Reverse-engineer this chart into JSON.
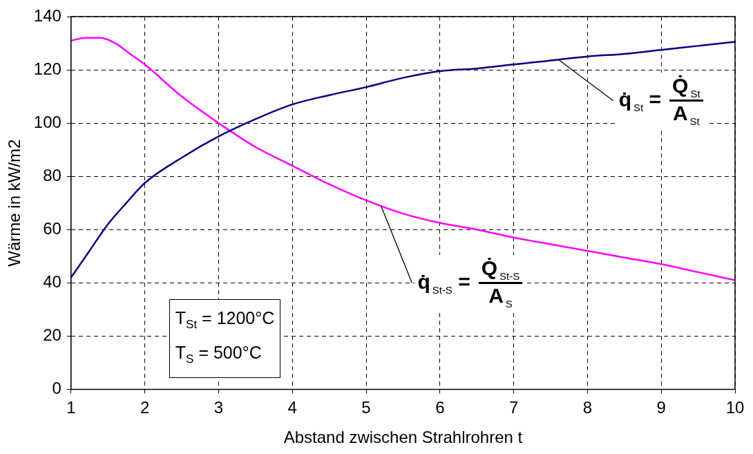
{
  "chart_data": {
    "type": "line",
    "xlabel": "Abstand zwischen Strahlrohren t",
    "ylabel": "Wärme in kW/m2",
    "xlim": [
      1,
      10
    ],
    "xticks": [
      1,
      2,
      3,
      4,
      5,
      6,
      7,
      8,
      9,
      10
    ],
    "ylim": [
      0,
      140
    ],
    "yticks": [
      0,
      20,
      40,
      60,
      80,
      100,
      120,
      140
    ],
    "grid": true,
    "marker": "none",
    "series": [
      {
        "color": "#000080",
        "x": [
          1,
          1.25,
          1.5,
          1.75,
          2,
          2.5,
          3,
          3.5,
          4,
          4.5,
          5,
          5.5,
          6,
          6.5,
          7,
          7.5,
          8,
          8.5,
          9,
          9.5,
          10
        ],
        "values": [
          42,
          52,
          62,
          70,
          77.5,
          87,
          95,
          101.5,
          107,
          110.5,
          113.5,
          117,
          119.5,
          120.5,
          122,
          123.5,
          125,
          126,
          127.5,
          129,
          130.5
        ]
      },
      {
        "color": "#ff00ff",
        "x": [
          1,
          1.2,
          1.4,
          1.6,
          1.8,
          2,
          2.5,
          3,
          3.5,
          4,
          4.5,
          5,
          5.5,
          6,
          6.5,
          7,
          7.5,
          8,
          8.5,
          9,
          9.5,
          10
        ],
        "values": [
          131,
          132,
          132,
          130,
          126,
          122,
          110,
          100,
          91,
          84,
          77,
          71,
          66,
          62.5,
          60,
          57,
          54.5,
          52,
          49.5,
          47,
          44,
          41
        ]
      }
    ],
    "annotations": [
      {
        "text": "q̇$_{St}$ =",
        "x": 7.6,
        "y": 124
      },
      "Q̇$_{St}$",
      "A$_{St}$",
      {
        "text": "q̇$_{St-S}$ =",
        "x": 5.2,
        "y": 69
      },
      "Q̇$_{St-S}$",
      "A$_{S}$",
      "T$_{St}$ = 1200°C",
      "T$_{S}$ = 500°C"
    ]
  }
}
